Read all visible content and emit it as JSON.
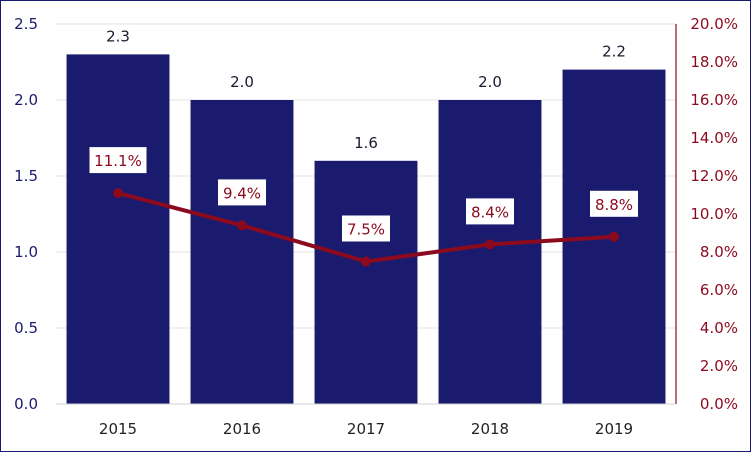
{
  "chart_data": {
    "type": "bar",
    "categories": [
      "2015",
      "2016",
      "2017",
      "2018",
      "2019"
    ],
    "series": [
      {
        "type": "bar",
        "axis": "left",
        "values": [
          2.3,
          2.0,
          1.6,
          2.0,
          2.2
        ],
        "value_labels": [
          "2.3",
          "2.0",
          "1.6",
          "2.0",
          "2.2"
        ],
        "color": "#1a1a6e"
      },
      {
        "type": "line",
        "axis": "right",
        "values": [
          11.1,
          9.4,
          7.5,
          8.4,
          8.8
        ],
        "value_labels": [
          "11.1%",
          "9.4%",
          "7.5%",
          "8.4%",
          "8.8%"
        ],
        "color": "#8b0a1e"
      }
    ],
    "y_left": {
      "ylim": [
        0,
        2.5
      ],
      "ticks": [
        "0.0",
        "0.5",
        "1.0",
        "1.5",
        "2.0",
        "2.5"
      ],
      "color": "#1a1a6e"
    },
    "y_right": {
      "ylim": [
        0,
        20
      ],
      "ticks": [
        "0.0%",
        "2.0%",
        "4.0%",
        "6.0%",
        "8.0%",
        "10.0%",
        "12.0%",
        "14.0%",
        "16.0%",
        "18.0%",
        "20.0%"
      ],
      "color": "#8b0a1e"
    },
    "grid": true,
    "legend": "none",
    "title": "",
    "xlabel": "",
    "ylabel": ""
  }
}
